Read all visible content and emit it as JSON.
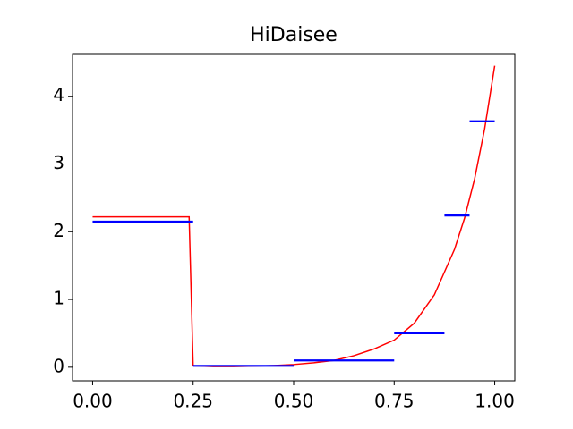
{
  "chart_data": {
    "type": "line",
    "title": "HiDaisee",
    "x": [
      0,
      0.24,
      0.25,
      0.3,
      0.35,
      0.4,
      0.45,
      0.5,
      0.55,
      0.6,
      0.65,
      0.7,
      0.75,
      0.8,
      0.85,
      0.9,
      0.925,
      0.95,
      0.975,
      1.0
    ],
    "series": [
      {
        "color": "#ff0000",
        "values": [
          2.22,
          2.22,
          0.02,
          0.01,
          0.01,
          0.016,
          0.025,
          0.04,
          0.065,
          0.1,
          0.17,
          0.27,
          0.4,
          0.65,
          1.07,
          1.74,
          2.2,
          2.78,
          3.52,
          4.45
        ]
      }
    ],
    "steps": {
      "color": "#0000ff",
      "x_start": [
        0,
        0.25,
        0.5,
        0.75,
        0.875,
        0.9375
      ],
      "x_end": [
        0.25,
        0.5,
        0.75,
        0.875,
        0.9375,
        1.0
      ],
      "values": [
        2.15,
        0.02,
        0.1,
        0.5,
        2.24,
        3.63
      ]
    },
    "xlim": [
      -0.05,
      1.05
    ],
    "ylim": [
      -0.2,
      4.63
    ],
    "xticks": [
      {
        "value": 0,
        "label": "0.00"
      },
      {
        "value": 0.25,
        "label": "0.25"
      },
      {
        "value": 0.5,
        "label": "0.50"
      },
      {
        "value": 0.75,
        "label": "0.75"
      },
      {
        "value": 1.0,
        "label": "1.00"
      }
    ],
    "yticks": [
      0,
      1,
      2,
      3,
      4
    ]
  }
}
